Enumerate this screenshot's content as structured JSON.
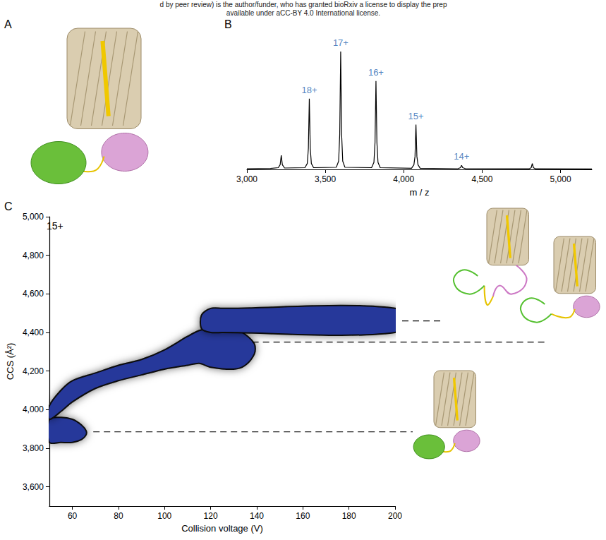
{
  "header": [
    "d by peer review) is the author/funder, who has granted bioRxiv a license to display the prep",
    "available under aCC-BY 4.0 International license."
  ],
  "panel_a": {
    "label": "A"
  },
  "chart_data": [
    {
      "panel": "B",
      "type": "line",
      "x_label": "m / z",
      "color": "#000000",
      "x": [
        3000,
        3150,
        3200,
        3212,
        3219,
        3226,
        3240,
        3370,
        3385,
        3392,
        3398,
        3404,
        3411,
        3425,
        3570,
        3585,
        3592,
        3598,
        3604,
        3611,
        3625,
        3795,
        3810,
        3817,
        3823,
        3829,
        3836,
        3850,
        4050,
        4065,
        4072,
        4078,
        4084,
        4091,
        4105,
        4345,
        4362,
        4369,
        4376,
        4395,
        4800,
        4813,
        4820,
        4827,
        4840,
        5200
      ],
      "values": [
        0.5,
        0.8,
        1.5,
        4,
        12,
        4,
        1.2,
        1.5,
        5,
        18,
        60,
        18,
        5,
        1.5,
        1.8,
        7,
        30,
        100,
        30,
        7,
        1.8,
        1.5,
        6,
        23,
        75,
        23,
        6,
        1.5,
        1,
        4,
        11,
        38,
        11,
        4,
        1,
        0.6,
        1.5,
        3.5,
        1.5,
        0.6,
        0.5,
        1.5,
        5,
        1.5,
        0.5,
        0.4
      ],
      "xlim": [
        3000,
        5200
      ],
      "xticks": [
        3000,
        3500,
        4000,
        4500,
        5000
      ],
      "ylim": [
        0,
        115
      ],
      "tick_labels": "x",
      "annotations": [
        {
          "text": "18+",
          "x": 3398,
          "y": 60,
          "color": "#1f64b0"
        },
        {
          "text": "17+",
          "x": 3598,
          "y": 100,
          "color": "#1f64b0"
        },
        {
          "text": "16+",
          "x": 3823,
          "y": 75,
          "color": "#1f64b0"
        },
        {
          "text": "15+",
          "x": 4078,
          "y": 38,
          "color": "#1f64b0"
        },
        {
          "text": "14+",
          "x": 4369,
          "y": 3.5,
          "color": "#1f64b0"
        }
      ]
    },
    {
      "panel": "C",
      "type": "heatmap",
      "label": "15+",
      "x_label": "Collision voltage (V)",
      "y_label": "CCS (Å²)",
      "color": "#27389a",
      "xlim": [
        50,
        200
      ],
      "xticks": [
        60,
        80,
        100,
        120,
        140,
        160,
        180,
        200
      ],
      "ylim": [
        3500,
        5000
      ],
      "yticks": [
        3600,
        3800,
        4000,
        4200,
        4400,
        4600,
        4800,
        5000
      ],
      "regions": [
        {
          "voltage": [
            50,
            55,
            60,
            64,
            66
          ],
          "ccs_low": [
            3830,
            3830,
            3830,
            3845,
            3870
          ],
          "ccs_high": [
            3950,
            3960,
            3950,
            3920,
            3890
          ]
        },
        {
          "voltage": [
            50,
            55,
            60,
            70,
            80,
            90,
            100,
            110,
            115,
            120,
            130,
            135,
            139
          ],
          "ccs_low": [
            3950,
            3990,
            4040,
            4110,
            4150,
            4180,
            4210,
            4230,
            4240,
            4220,
            4210,
            4230,
            4290
          ],
          "ccs_high": [
            4020,
            4100,
            4150,
            4190,
            4230,
            4260,
            4310,
            4380,
            4410,
            4420,
            4420,
            4390,
            4340
          ]
        },
        {
          "voltage": [
            116,
            120,
            125,
            200
          ],
          "ccs_low": [
            4420,
            4400,
            4400,
            4400
          ],
          "ccs_high": [
            4490,
            4525,
            4525,
            4525
          ]
        }
      ],
      "reference_ccs": [
        3885,
        4350,
        4460
      ]
    }
  ]
}
